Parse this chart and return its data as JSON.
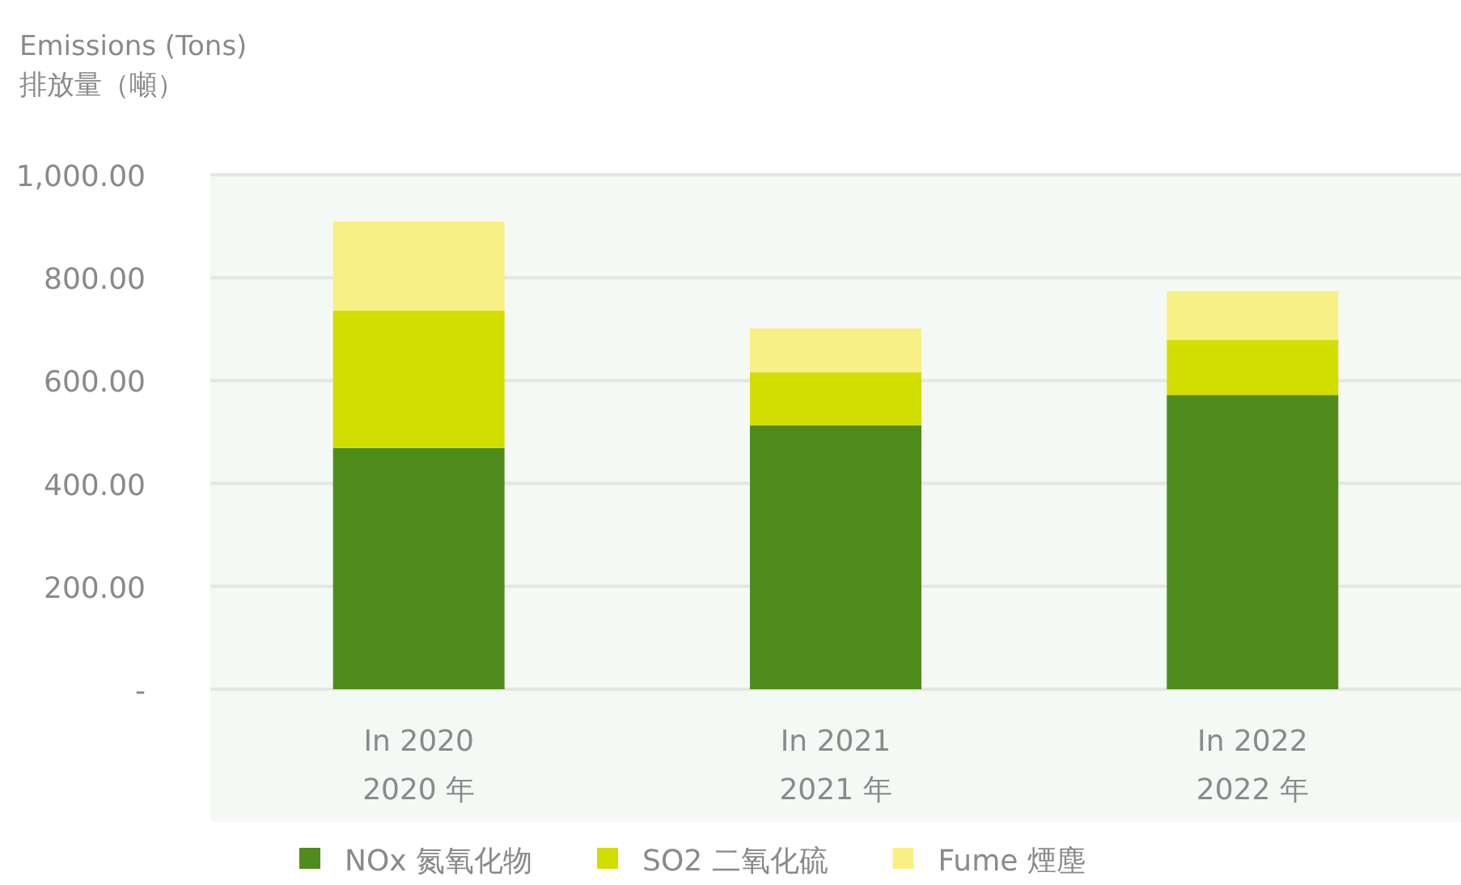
{
  "chart_data": {
    "type": "bar",
    "stacked": true,
    "ylabel": "Emissions (Tons)\n排放量（噸）",
    "categories": [
      "In 2020\n2020 年",
      "In 2021\n2021 年",
      "In 2022\n2022 年"
    ],
    "series": [
      {
        "name": "NOx 氮氧化物",
        "color": "#508c1c",
        "values": [
          469,
          513,
          572
        ]
      },
      {
        "name": "SO2  二氧化硫",
        "color": "#d1de00",
        "values": [
          267,
          103,
          107
        ]
      },
      {
        "name": "Fume 煙塵",
        "color": "#f9f085",
        "values": [
          173,
          85,
          95
        ]
      }
    ],
    "ylim": [
      0,
      1000
    ],
    "yticks": [
      {
        "value": 0,
        "label": "-"
      },
      {
        "value": 200,
        "label": "200.00"
      },
      {
        "value": 400,
        "label": "400.00"
      },
      {
        "value": 600,
        "label": "600.00"
      },
      {
        "value": 800,
        "label": "800.00"
      },
      {
        "value": 1000,
        "label": "1,000.00"
      }
    ],
    "grid": "y",
    "legend": "bottom"
  }
}
